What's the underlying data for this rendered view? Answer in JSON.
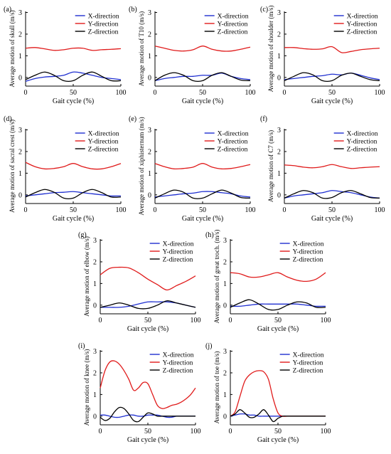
{
  "colors": {
    "x": "#1f2fd0",
    "y": "#e01b1b",
    "z": "#000000",
    "axis": "#000000"
  },
  "legend_labels": [
    "X-direction",
    "Y-direction",
    "Z-direction"
  ],
  "x_axis_label": "Gait cycle (%)",
  "chart_data": [
    {
      "panel_label": "(a)",
      "type": "line",
      "ylabel": "Average motion of skull (m/s)",
      "xlim": [
        0,
        100
      ],
      "ylim": [
        0,
        3
      ],
      "xticks": [
        0,
        50,
        100
      ],
      "yticks": [
        0,
        1,
        2,
        3
      ],
      "x": [
        0,
        10,
        20,
        30,
        40,
        50,
        60,
        70,
        80,
        90,
        100
      ],
      "series": [
        {
          "name": "X-direction",
          "key": "x",
          "values": [
            -0.18,
            -0.05,
            0.02,
            0.05,
            0.1,
            0.25,
            0.2,
            0.1,
            0.0,
            -0.05,
            -0.1
          ]
        },
        {
          "name": "Y-direction",
          "key": "y",
          "values": [
            1.35,
            1.38,
            1.32,
            1.25,
            1.28,
            1.35,
            1.35,
            1.25,
            1.28,
            1.3,
            1.33
          ]
        },
        {
          "name": "Z-direction",
          "key": "z",
          "values": [
            -0.1,
            0.1,
            0.25,
            0.1,
            -0.15,
            -0.15,
            0.1,
            0.25,
            0.05,
            -0.15,
            -0.15
          ]
        }
      ]
    },
    {
      "panel_label": "(b)",
      "type": "line",
      "ylabel": "Average motion of T10 (m/s)",
      "xlim": [
        0,
        100
      ],
      "ylim": [
        0,
        3
      ],
      "xticks": [
        0,
        50,
        100
      ],
      "yticks": [
        0,
        1,
        2,
        3
      ],
      "x": [
        0,
        10,
        20,
        30,
        40,
        50,
        60,
        70,
        80,
        90,
        100
      ],
      "series": [
        {
          "name": "X-direction",
          "key": "x",
          "values": [
            -0.15,
            -0.05,
            0.0,
            0.05,
            0.05,
            0.1,
            0.1,
            0.2,
            0.05,
            -0.05,
            -0.1
          ]
        },
        {
          "name": "Y-direction",
          "key": "y",
          "values": [
            1.45,
            1.35,
            1.25,
            1.22,
            1.28,
            1.45,
            1.3,
            1.22,
            1.22,
            1.3,
            1.4
          ]
        },
        {
          "name": "Z-direction",
          "key": "z",
          "values": [
            -0.15,
            0.1,
            0.22,
            0.1,
            -0.15,
            -0.15,
            0.1,
            0.22,
            0.05,
            -0.12,
            -0.15
          ]
        }
      ]
    },
    {
      "panel_label": "(c)",
      "type": "line",
      "ylabel": "Average motion of shoulder (m/s)",
      "xlim": [
        0,
        100
      ],
      "ylim": [
        0,
        3
      ],
      "xticks": [
        0,
        50,
        100
      ],
      "yticks": [
        0,
        1,
        2,
        3
      ],
      "x": [
        0,
        10,
        20,
        30,
        40,
        50,
        60,
        70,
        80,
        90,
        100
      ],
      "series": [
        {
          "name": "X-direction",
          "key": "x",
          "values": [
            -0.1,
            -0.05,
            0.0,
            0.05,
            0.08,
            0.15,
            0.12,
            0.2,
            0.1,
            -0.02,
            -0.1
          ]
        },
        {
          "name": "Y-direction",
          "key": "y",
          "values": [
            1.38,
            1.38,
            1.33,
            1.3,
            1.32,
            1.42,
            1.15,
            1.2,
            1.28,
            1.32,
            1.35
          ]
        },
        {
          "name": "Z-direction",
          "key": "z",
          "values": [
            -0.15,
            0.05,
            0.22,
            0.12,
            -0.15,
            -0.15,
            0.1,
            0.2,
            0.05,
            -0.1,
            -0.15
          ]
        }
      ]
    },
    {
      "panel_label": "(d)",
      "type": "line",
      "ylabel": "Average motion of sacral crest (m/s)",
      "xlim": [
        0,
        100
      ],
      "ylim": [
        0,
        3
      ],
      "xticks": [
        0,
        50,
        100
      ],
      "yticks": [
        0,
        1,
        2,
        3
      ],
      "x": [
        0,
        10,
        20,
        30,
        40,
        50,
        60,
        70,
        80,
        90,
        100
      ],
      "series": [
        {
          "name": "X-direction",
          "key": "x",
          "values": [
            -0.05,
            0.0,
            0.05,
            0.1,
            0.12,
            0.15,
            0.1,
            0.05,
            0.0,
            -0.05,
            -0.05
          ]
        },
        {
          "name": "Y-direction",
          "key": "y",
          "values": [
            1.5,
            1.3,
            1.2,
            1.22,
            1.3,
            1.45,
            1.3,
            1.2,
            1.2,
            1.3,
            1.45
          ]
        },
        {
          "name": "Z-direction",
          "key": "z",
          "values": [
            -0.1,
            0.1,
            0.25,
            0.12,
            -0.15,
            -0.15,
            0.1,
            0.25,
            0.1,
            -0.1,
            -0.1
          ]
        }
      ]
    },
    {
      "panel_label": "(e)",
      "type": "line",
      "ylabel": "Average motion of xiphisternum (m/s)",
      "xlim": [
        0,
        100
      ],
      "ylim": [
        0,
        3
      ],
      "xticks": [
        0,
        50,
        100
      ],
      "yticks": [
        0,
        1,
        2,
        3
      ],
      "x": [
        0,
        10,
        20,
        30,
        40,
        50,
        60,
        70,
        80,
        90,
        100
      ],
      "series": [
        {
          "name": "X-direction",
          "key": "x",
          "values": [
            -0.1,
            -0.05,
            0.0,
            0.05,
            0.08,
            0.15,
            0.15,
            0.1,
            0.05,
            -0.05,
            -0.1
          ]
        },
        {
          "name": "Y-direction",
          "key": "y",
          "values": [
            1.45,
            1.3,
            1.2,
            1.22,
            1.28,
            1.45,
            1.28,
            1.2,
            1.22,
            1.3,
            1.4
          ]
        },
        {
          "name": "Z-direction",
          "key": "z",
          "values": [
            -0.15,
            0.05,
            0.22,
            0.12,
            -0.15,
            -0.15,
            0.05,
            0.22,
            0.08,
            -0.12,
            -0.15
          ]
        }
      ]
    },
    {
      "panel_label": "(f)",
      "type": "line",
      "ylabel": "Average motion of C7 (m/s)",
      "xlim": [
        0,
        100
      ],
      "ylim": [
        0,
        3
      ],
      "xticks": [
        0,
        50,
        100
      ],
      "yticks": [
        0,
        1,
        2,
        3
      ],
      "x": [
        0,
        10,
        20,
        30,
        40,
        50,
        60,
        70,
        80,
        90,
        100
      ],
      "series": [
        {
          "name": "X-direction",
          "key": "x",
          "values": [
            -0.15,
            -0.05,
            0.0,
            0.05,
            0.1,
            0.2,
            0.15,
            0.1,
            0.0,
            -0.1,
            -0.15
          ]
        },
        {
          "name": "Y-direction",
          "key": "y",
          "values": [
            1.38,
            1.35,
            1.28,
            1.25,
            1.3,
            1.4,
            1.3,
            1.22,
            1.25,
            1.28,
            1.3
          ]
        },
        {
          "name": "Z-direction",
          "key": "z",
          "values": [
            -0.15,
            0.05,
            0.2,
            0.1,
            -0.15,
            -0.12,
            0.1,
            0.2,
            0.05,
            -0.12,
            -0.15
          ]
        }
      ]
    },
    {
      "panel_label": "(g)",
      "type": "line",
      "ylabel": "Average motion of elbow (m/s)",
      "xlim": [
        0,
        100
      ],
      "ylim": [
        0,
        3
      ],
      "xticks": [
        0,
        50,
        100
      ],
      "yticks": [
        0,
        1,
        2,
        3
      ],
      "x": [
        0,
        10,
        20,
        30,
        40,
        50,
        60,
        70,
        80,
        90,
        100
      ],
      "series": [
        {
          "name": "X-direction",
          "key": "x",
          "values": [
            -0.1,
            -0.1,
            -0.1,
            -0.05,
            0.05,
            0.15,
            0.15,
            0.15,
            0.1,
            0.0,
            -0.1
          ]
        },
        {
          "name": "Y-direction",
          "key": "y",
          "values": [
            1.4,
            1.7,
            1.75,
            1.72,
            1.5,
            1.2,
            0.95,
            0.7,
            0.9,
            1.1,
            1.35
          ]
        },
        {
          "name": "Z-direction",
          "key": "z",
          "values": [
            -0.1,
            0.0,
            0.1,
            0.0,
            -0.15,
            -0.15,
            0.0,
            0.2,
            0.1,
            0.0,
            -0.1
          ]
        }
      ]
    },
    {
      "panel_label": "(h)",
      "type": "line",
      "ylabel": "Average motion of great troch. (m/s)",
      "xlim": [
        0,
        100
      ],
      "ylim": [
        0,
        3
      ],
      "xticks": [
        0,
        50,
        100
      ],
      "yticks": [
        0,
        1,
        2,
        3
      ],
      "x": [
        0,
        10,
        20,
        30,
        40,
        50,
        60,
        70,
        80,
        90,
        100
      ],
      "series": [
        {
          "name": "X-direction",
          "key": "x",
          "values": [
            -0.05,
            -0.05,
            0.0,
            0.05,
            0.05,
            0.05,
            0.05,
            0.05,
            0.0,
            -0.05,
            -0.05
          ]
        },
        {
          "name": "Y-direction",
          "key": "y",
          "values": [
            1.5,
            1.45,
            1.3,
            1.3,
            1.4,
            1.5,
            1.3,
            1.15,
            1.1,
            1.2,
            1.5
          ]
        },
        {
          "name": "Z-direction",
          "key": "z",
          "values": [
            -0.1,
            0.1,
            0.25,
            0.05,
            -0.2,
            -0.2,
            0.0,
            0.15,
            0.1,
            -0.1,
            -0.1
          ]
        }
      ]
    },
    {
      "panel_label": "(i)",
      "type": "line",
      "ylabel": "Average motion of knee (m/s)",
      "xlim": [
        0,
        100
      ],
      "ylim": [
        0,
        3
      ],
      "xticks": [
        0,
        50,
        100
      ],
      "yticks": [
        0,
        1,
        2,
        3
      ],
      "x": [
        0,
        5,
        10,
        15,
        20,
        25,
        30,
        35,
        40,
        45,
        50,
        55,
        60,
        65,
        70,
        75,
        80,
        85,
        90,
        95,
        100
      ],
      "series": [
        {
          "name": "X-direction",
          "key": "x",
          "values": [
            0.05,
            0.05,
            0.0,
            -0.05,
            -0.05,
            0.0,
            0.05,
            0.05,
            0.0,
            0.0,
            0.05,
            0.05,
            0.05,
            0.0,
            -0.05,
            -0.05,
            0.0,
            0.0,
            0.0,
            0.0,
            0.0
          ]
        },
        {
          "name": "Y-direction",
          "key": "y",
          "values": [
            1.3,
            2.1,
            2.5,
            2.55,
            2.4,
            2.1,
            1.7,
            1.2,
            1.3,
            1.55,
            1.5,
            1.0,
            0.5,
            0.35,
            0.4,
            0.5,
            0.55,
            0.65,
            0.8,
            1.0,
            1.3
          ]
        },
        {
          "name": "Z-direction",
          "key": "z",
          "values": [
            -0.05,
            -0.2,
            -0.1,
            0.2,
            0.4,
            0.35,
            0.1,
            -0.2,
            -0.25,
            -0.05,
            0.15,
            0.1,
            0.0,
            0.0,
            0.0,
            0.0,
            0.0,
            0.0,
            0.0,
            0.0,
            0.0
          ]
        }
      ]
    },
    {
      "panel_label": "(j)",
      "type": "line",
      "ylabel": "Average motion of toe (m/s)",
      "xlim": [
        0,
        100
      ],
      "ylim": [
        0,
        3
      ],
      "xticks": [
        0,
        50,
        100
      ],
      "yticks": [
        0,
        1,
        2,
        3
      ],
      "x": [
        0,
        5,
        10,
        15,
        20,
        25,
        30,
        35,
        40,
        45,
        50,
        55,
        60,
        65,
        70,
        75,
        80,
        85,
        90,
        95,
        100
      ],
      "series": [
        {
          "name": "X-direction",
          "key": "x",
          "values": [
            0.0,
            0.05,
            0.1,
            0.1,
            0.05,
            0.05,
            0.0,
            0.0,
            0.0,
            0.0,
            0.0,
            0.0,
            0.0,
            0.0,
            0.0,
            0.0,
            0.0,
            0.0,
            0.0,
            0.0,
            0.0
          ]
        },
        {
          "name": "Y-direction",
          "key": "y",
          "values": [
            0.0,
            0.2,
            0.9,
            1.6,
            1.9,
            2.05,
            2.1,
            2.05,
            1.7,
            0.8,
            0.15,
            0.0,
            0.0,
            0.0,
            0.0,
            0.0,
            0.0,
            0.0,
            0.0,
            0.0,
            0.0
          ]
        },
        {
          "name": "Z-direction",
          "key": "z",
          "values": [
            0.0,
            0.1,
            0.3,
            0.15,
            -0.05,
            -0.05,
            0.1,
            0.3,
            0.05,
            -0.25,
            -0.1,
            0.0,
            0.0,
            0.0,
            0.0,
            0.0,
            0.0,
            0.0,
            0.0,
            0.0,
            0.0
          ]
        }
      ]
    }
  ]
}
